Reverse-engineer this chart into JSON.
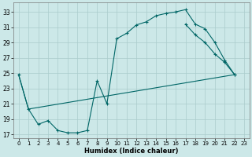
{
  "xlabel": "Humidex (Indice chaleur)",
  "background_color": "#cce8e8",
  "grid_color": "#aacccc",
  "line_color": "#006666",
  "xlim": [
    -0.5,
    23.5
  ],
  "ylim": [
    16.5,
    34.2
  ],
  "xticks": [
    0,
    1,
    2,
    3,
    4,
    5,
    6,
    7,
    8,
    9,
    10,
    11,
    12,
    13,
    14,
    15,
    16,
    17,
    18,
    19,
    20,
    21,
    22,
    23
  ],
  "yticks": [
    17,
    19,
    21,
    23,
    25,
    27,
    29,
    31,
    33
  ],
  "curve1_x": [
    0,
    1,
    2,
    3,
    4,
    5,
    6,
    7,
    8,
    9,
    10,
    11,
    12,
    13,
    14,
    15,
    16,
    17,
    18,
    19,
    20,
    21,
    22
  ],
  "curve1_y": [
    24.8,
    20.3,
    18.3,
    18.8,
    17.5,
    17.2,
    17.2,
    17.5,
    24.0,
    21.0,
    29.5,
    30.2,
    31.3,
    31.7,
    32.5,
    32.8,
    33.0,
    33.3,
    31.4,
    30.8,
    29.0,
    26.7,
    24.8
  ],
  "curve2_x": [
    1,
    22
  ],
  "curve2_y": [
    20.3,
    24.8
  ],
  "curve3_x": [
    0,
    1
  ],
  "curve3_y": [
    24.8,
    20.3
  ],
  "connect_x": [
    17,
    18,
    19,
    20,
    21,
    22
  ],
  "connect_y": [
    31.4,
    30.0,
    29.0,
    27.5,
    26.4,
    24.8
  ]
}
